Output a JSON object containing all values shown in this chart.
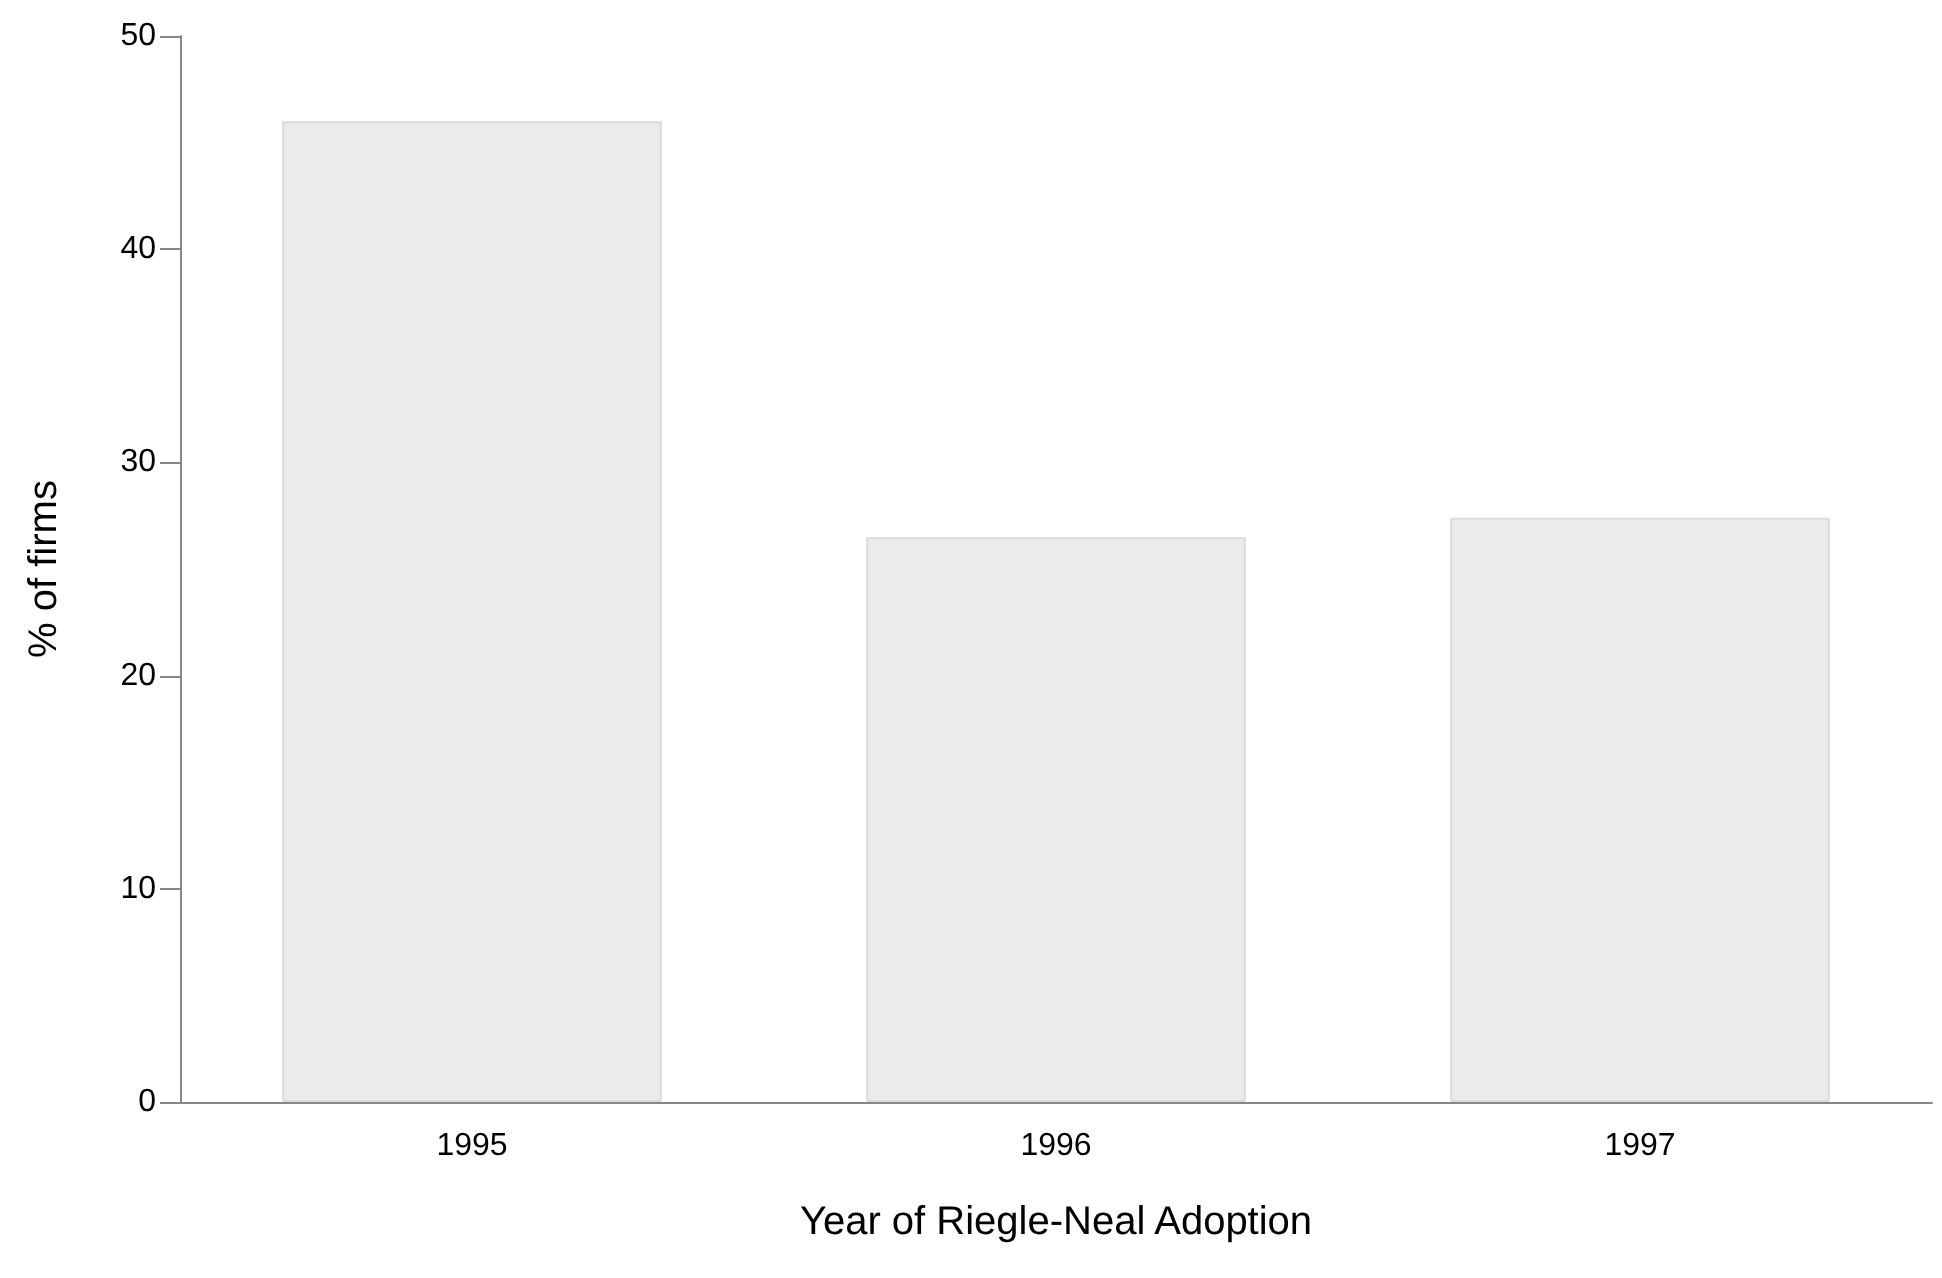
{
  "chart_data": {
    "type": "bar",
    "xlabel": "Year of Riegle-Neal Adoption",
    "ylabel": "% of firms",
    "categories": [
      "1995",
      "1996",
      "1997"
    ],
    "values": [
      46.0,
      26.5,
      27.4
    ],
    "color": "#ebebeb",
    "ylim": [
      0,
      50
    ],
    "yticks": [
      0,
      10,
      20,
      30,
      40,
      50
    ],
    "grid": false
  }
}
